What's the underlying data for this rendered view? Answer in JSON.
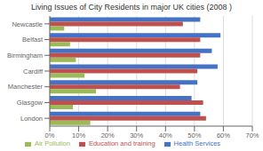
{
  "chart_data": {
    "type": "bar",
    "orientation": "horizontal",
    "title": "Living Issues of City Residents in major UK cities (2008 )",
    "categories": [
      "Newcastle",
      "Belfast",
      "Birmingham",
      "Cardiff",
      "Manchester",
      "Glasgow",
      "London"
    ],
    "series": [
      {
        "name": "Health Services",
        "color": "#4472C4",
        "values": [
          52,
          59,
          56,
          58,
          51,
          49,
          52
        ]
      },
      {
        "name": "Education and training",
        "color": "#C0504D",
        "values": [
          46,
          52,
          52,
          51,
          45,
          53,
          54
        ]
      },
      {
        "name": "Air Pollution",
        "color": "#9BBB59",
        "values": [
          5,
          7,
          9,
          12,
          16,
          8,
          14
        ]
      }
    ],
    "xlim": [
      0,
      70
    ],
    "xticks": [
      {
        "value": 0,
        "label": "0%"
      },
      {
        "value": 10,
        "label": "10%"
      },
      {
        "value": 20,
        "label": "20%"
      },
      {
        "value": 30,
        "label": "30%"
      },
      {
        "value": 40,
        "label": "40%"
      },
      {
        "value": 50,
        "label": "50%"
      },
      {
        "value": 60,
        "label": "60%"
      },
      {
        "value": 70,
        "label": "70%"
      }
    ],
    "grid": true,
    "legend": "bottom"
  }
}
